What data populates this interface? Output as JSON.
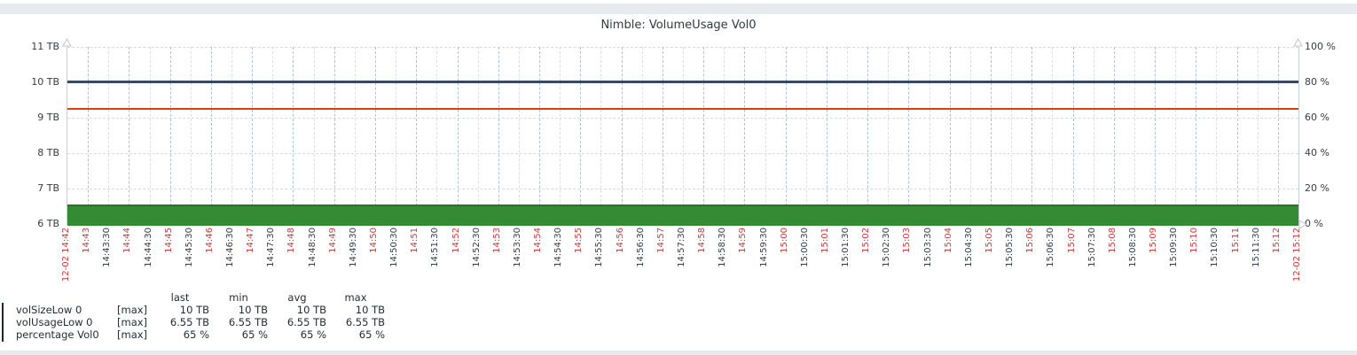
{
  "chart_data": {
    "type": "line",
    "title": "Nimble: VolumeUsage Vol0",
    "grid": true,
    "time_range": {
      "start": "12-02 14:42",
      "end": "12-02 15:12"
    },
    "y_left": {
      "unit": "TB",
      "min": 6,
      "max": 11,
      "labels": [
        "11 TB",
        "10 TB",
        "9 TB",
        "8 TB",
        "7 TB",
        "6 TB"
      ]
    },
    "y_right": {
      "unit": "%",
      "min": 0,
      "max": 100,
      "labels": [
        "100 %",
        "80 %",
        "60 %",
        "40 %",
        "20 %",
        "0 %"
      ]
    },
    "x_ticks": [
      "12-02 14:42",
      "14:43",
      "14:43:30",
      "14:44",
      "14:44:30",
      "14:45",
      "14:45:30",
      "14:46",
      "14:46:30",
      "14:47",
      "14:47:30",
      "14:48",
      "14:48:30",
      "14:49",
      "14:49:30",
      "14:50",
      "14:50:30",
      "14:51",
      "14:51:30",
      "14:52",
      "14:52:30",
      "14:53",
      "14:53:30",
      "14:54",
      "14:54:30",
      "14:55",
      "14:55:30",
      "14:56",
      "14:56:30",
      "14:57",
      "14:57:30",
      "14:58",
      "14:58:30",
      "14:59",
      "14:59:30",
      "15:00",
      "15:00:30",
      "15:01",
      "15:01:30",
      "15:02",
      "15:02:30",
      "15:03",
      "15:03:30",
      "15:04",
      "15:04:30",
      "15:05",
      "15:05:30",
      "15:06",
      "15:06:30",
      "15:07",
      "15:07:30",
      "15:08",
      "15:08:30",
      "15:09",
      "15:09:30",
      "15:10",
      "15:10:30",
      "15:11",
      "15:11:30",
      "15:12",
      "12-02 15:12"
    ],
    "series": [
      {
        "name": "volSizeLow 0",
        "func": "[max]",
        "draw": "line",
        "axis": "left",
        "value": 10,
        "thickness": 3,
        "color": "#2c4a78",
        "swatch": "#3a5084",
        "legend": {
          "last": "10 TB",
          "min": "10 TB",
          "avg": "10 TB",
          "max": "10 TB"
        }
      },
      {
        "name": "volUsageLow 0",
        "func": "[max]",
        "draw": "area",
        "axis": "left",
        "value": 6.55,
        "thickness": 2,
        "color": "#1f7a1f",
        "fill": "#348b34",
        "swatch": "#2f8f2f",
        "legend": {
          "last": "6.55 TB",
          "min": "6.55 TB",
          "avg": "6.55 TB",
          "max": "6.55 TB"
        }
      },
      {
        "name": "percentage Vol0",
        "func": "[max]",
        "draw": "line",
        "axis": "right",
        "value": 65,
        "thickness": 2,
        "color": "#e03c10",
        "swatch": "#f04222",
        "legend": {
          "last": "65 %",
          "min": "65 %",
          "avg": "65 %",
          "max": "65 %"
        }
      }
    ],
    "legend_headers": [
      "last",
      "min",
      "avg",
      "max"
    ]
  }
}
